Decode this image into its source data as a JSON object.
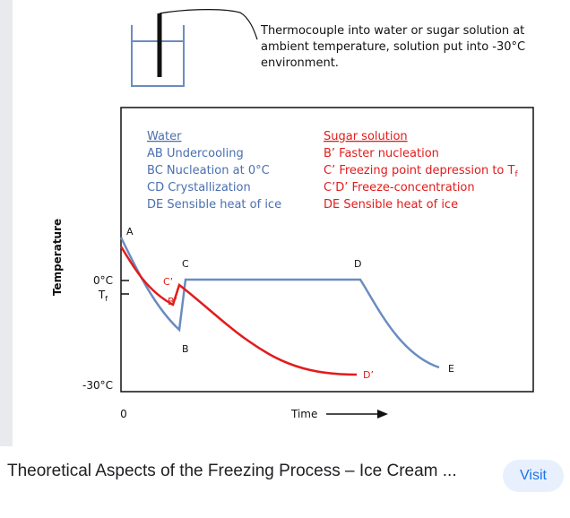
{
  "figure": {
    "top_note": [
      "Thermocouple into water or sugar solution at",
      "ambient temperature, solution put into -30°C",
      "environment."
    ],
    "water_legend": [
      "Water",
      "AB Undercooling",
      "BC Nucleation at 0°C",
      "CD Crystallization",
      "DE Sensible heat of ice"
    ],
    "sugar_legend": [
      "Sugar solution",
      "B’ Faster nucleation",
      "C’ Freezing point depression to T",
      "C’D’ Freeze-concentration",
      "DE Sensible heat of ice"
    ],
    "y_axis_label": "Temperature",
    "y_ticks": {
      "zero": "0°C",
      "tf": "T",
      "tf_sub": "f",
      "minus30": "-30°C"
    },
    "x_zero": "0",
    "x_label": "Time",
    "point_labels": {
      "A": "A",
      "B": "B",
      "C": "C",
      "D": "D",
      "E": "E",
      "Bp": "B’",
      "Cp": "C’",
      "Dp": "D’"
    },
    "colors": {
      "water": "#6b8cc0",
      "sugar": "#e21b1b",
      "legend_water": "#4a6fb0"
    }
  },
  "caption": {
    "title": "Theoretical Aspects of the Freezing Process – Ice Cream ...",
    "visit_label": "Visit"
  }
}
